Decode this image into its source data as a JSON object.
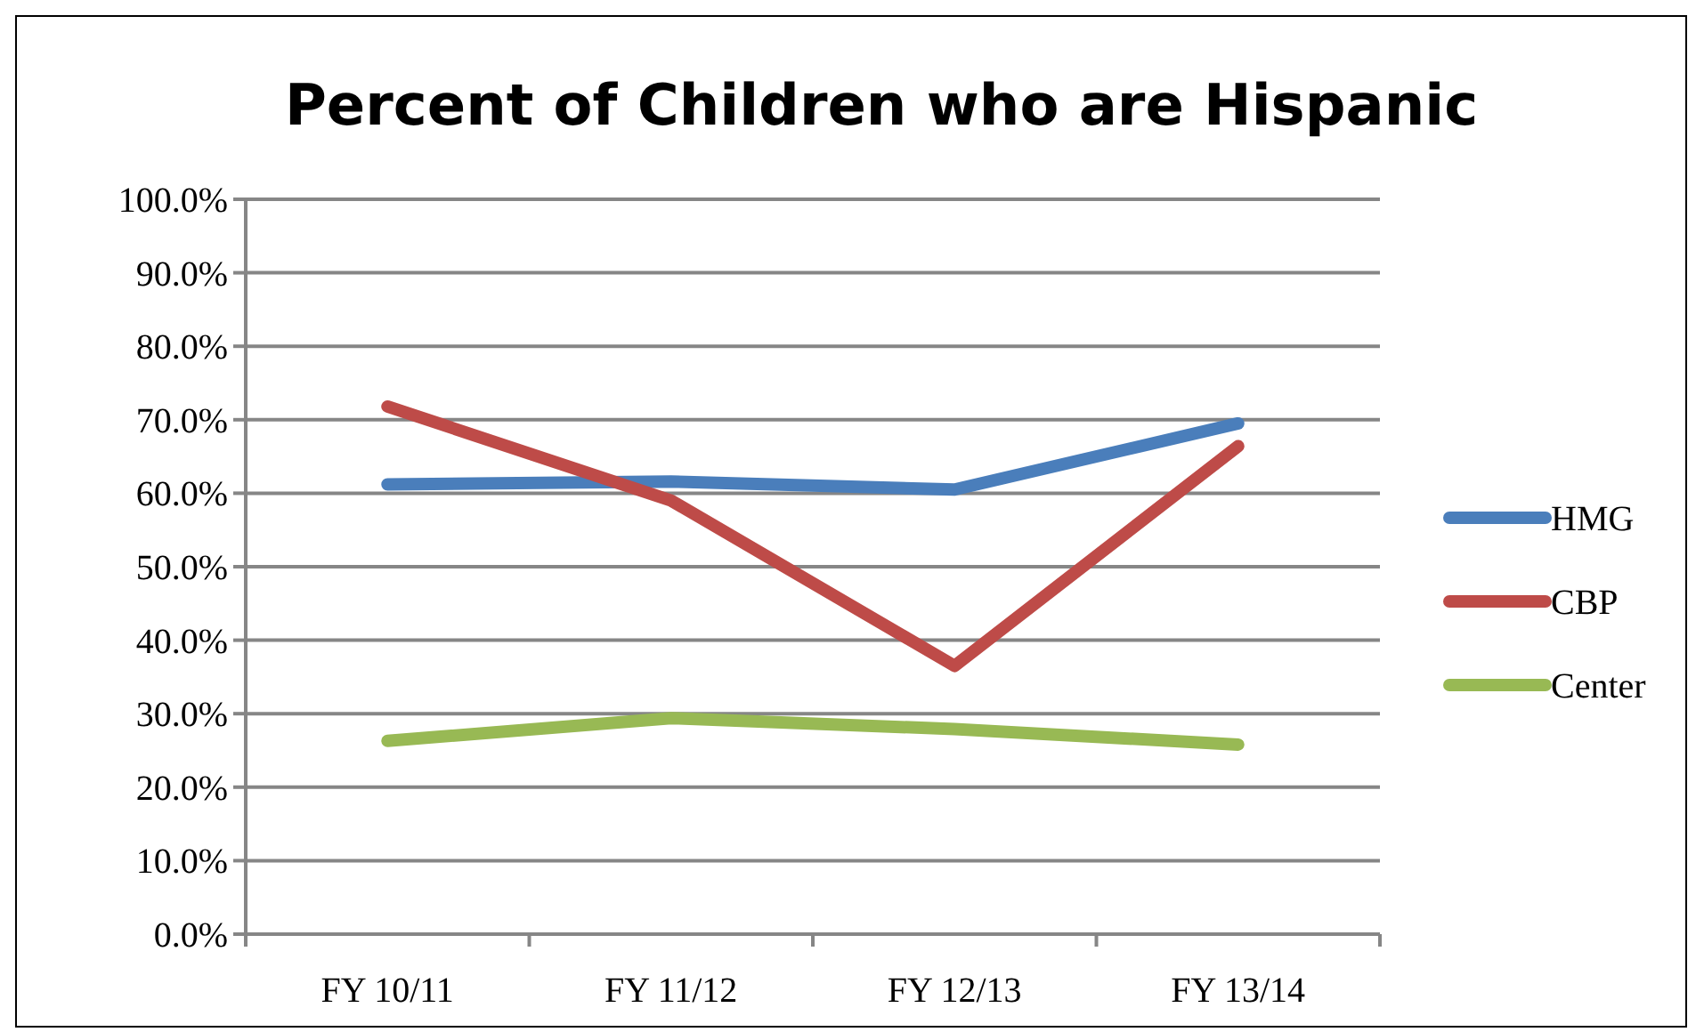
{
  "chart_data": {
    "type": "line",
    "title": "Percent of Children who are Hispanic",
    "categories": [
      "FY 10/11",
      "FY 11/12",
      "FY 12/13",
      "FY 13/14"
    ],
    "series": [
      {
        "name": "HMG",
        "color": "#4a7ebb",
        "values": [
          61.2,
          61.6,
          60.5,
          69.5
        ]
      },
      {
        "name": "CBP",
        "color": "#be4b48",
        "values": [
          71.8,
          59.0,
          36.5,
          66.4
        ]
      },
      {
        "name": "Center",
        "color": "#98b954",
        "values": [
          26.3,
          29.4,
          27.9,
          25.8
        ]
      }
    ],
    "ylim": [
      0,
      100
    ],
    "yticks": [
      {
        "value": 0,
        "label": "0.0%"
      },
      {
        "value": 10,
        "label": "10.0%"
      },
      {
        "value": 20,
        "label": "20.0%"
      },
      {
        "value": 30,
        "label": "30.0%"
      },
      {
        "value": 40,
        "label": "40.0%"
      },
      {
        "value": 50,
        "label": "50.0%"
      },
      {
        "value": 60,
        "label": "60.0%"
      },
      {
        "value": 70,
        "label": "70.0%"
      },
      {
        "value": 80,
        "label": "80.0%"
      },
      {
        "value": 90,
        "label": "90.0%"
      },
      {
        "value": 100,
        "label": "100.0%"
      }
    ],
    "grid": "y",
    "legend": "right",
    "marker": "none",
    "line_style": "solid"
  }
}
